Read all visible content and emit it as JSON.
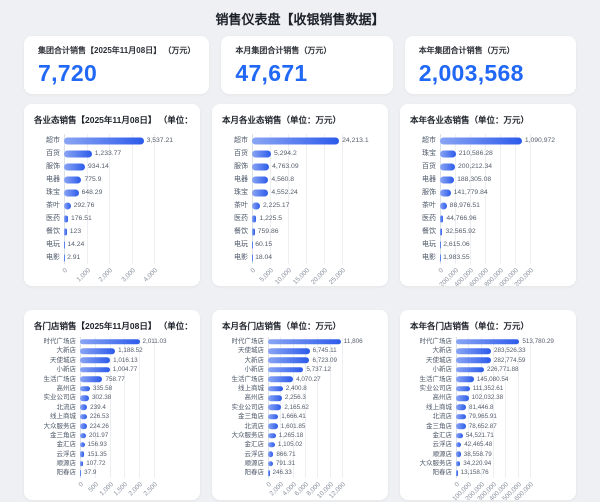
{
  "page": {
    "title": "销售仪表盘【收银销售数据】"
  },
  "colors": {
    "background": "#eef0f3",
    "card": "#ffffff",
    "kpi_value": "#2068f5",
    "bar_gradient_start": "#8aa5f4",
    "bar_gradient_end": "#2c5bea",
    "label_text": "#4e5969",
    "tick_text": "#8a919f"
  },
  "kpis": [
    {
      "title": "集团合计销售【2025年11月08日】 （万元）",
      "value": "7,720"
    },
    {
      "title": "本月集团合计销售（万元）",
      "value": "47,671"
    },
    {
      "title": "本年集团合计销售（万元）",
      "value": "2,003,568"
    }
  ],
  "chart_data": [
    {
      "type": "bar",
      "orientation": "horizontal",
      "title": "各业态销售【2025年11月08日】 （单位：万元）",
      "unit": "万元",
      "legend": null,
      "grid": true,
      "categories": [
        "超市",
        "百货",
        "服饰",
        "电器",
        "珠宝",
        "茶叶",
        "医药",
        "餐饮",
        "电玩",
        "电影"
      ],
      "values": [
        3537.21,
        1233.77,
        934.14,
        775.9,
        648.29,
        292.76,
        176.51,
        123,
        14.24,
        2.91
      ],
      "value_labels": [
        "3,537.21",
        "1,233.77",
        "934.14",
        "775.9",
        "648.29",
        "292.76",
        "176.51",
        "123",
        "14.24",
        "2.91"
      ],
      "xmax": 4000,
      "ticks": [
        0,
        1000,
        2000,
        3000,
        4000
      ],
      "tick_labels": [
        "0",
        "1,000",
        "2,000",
        "3,000",
        "4,000"
      ]
    },
    {
      "type": "bar",
      "orientation": "horizontal",
      "title": "本月各业态销售（单位：万元）",
      "unit": "万元",
      "legend": null,
      "grid": true,
      "categories": [
        "超市",
        "百货",
        "服饰",
        "电器",
        "珠宝",
        "茶叶",
        "医药",
        "餐饮",
        "电玩",
        "电影"
      ],
      "values": [
        24213.1,
        5294.2,
        4763.09,
        4560.8,
        4552.24,
        2225.17,
        1225.5,
        759.86,
        60.15,
        18.04
      ],
      "value_labels": [
        "24,213.1",
        "5,294.2",
        "4,763.09",
        "4,560.8",
        "4,552.24",
        "2,225.17",
        "1,225.5",
        "759.86",
        "60.15",
        "18.04"
      ],
      "xmax": 25000,
      "ticks": [
        0,
        5000,
        10000,
        15000,
        20000,
        25000
      ],
      "tick_labels": [
        "0",
        "5,000",
        "10,000",
        "15,000",
        "20,000",
        "25,000"
      ]
    },
    {
      "type": "bar",
      "orientation": "horizontal",
      "title": "本年各业态销售（单位：万元）",
      "unit": "万元",
      "legend": null,
      "grid": true,
      "categories": [
        "超市",
        "珠宝",
        "百货",
        "电器",
        "服饰",
        "茶叶",
        "医药",
        "餐饮",
        "电玩",
        "电影"
      ],
      "values": [
        1090972,
        210586.28,
        200212.34,
        188305.08,
        141779.84,
        88976.51,
        44766.96,
        32565.92,
        2615.06,
        1983.55
      ],
      "value_labels": [
        "1,090,972",
        "210,586.28",
        "200,212.34",
        "188,305.08",
        "141,779.84",
        "88,976.51",
        "44,766.96",
        "32,565.92",
        "2,615.06",
        "1,983.55"
      ],
      "xmax": 1200000,
      "ticks": [
        0,
        200000,
        400000,
        600000,
        800000,
        1000000,
        1200000
      ],
      "tick_labels": [
        "0",
        "200,000",
        "400,000",
        "600,000",
        "800,000",
        "1,000,000",
        "1,200,000"
      ]
    },
    {
      "type": "bar",
      "orientation": "horizontal",
      "title": "各门店销售【2025年11月08日】 （单位：万元）",
      "unit": "万元",
      "legend": null,
      "grid": true,
      "categories": [
        "时代广场店",
        "大新店",
        "天使城店",
        "小新店",
        "生活广场店",
        "高州店",
        "实业公司店",
        "北流店",
        "线上商城",
        "大众服务店",
        "金三角店",
        "金汇店",
        "云浮店",
        "顺源店",
        "阳春店"
      ],
      "values": [
        2011.03,
        1188.52,
        1016.13,
        1004.77,
        758.77,
        335.58,
        302.38,
        239.4,
        226.53,
        224.26,
        201.97,
        156.93,
        151.35,
        107.72,
        37.9
      ],
      "value_labels": [
        "2,011.03",
        "1,188.52",
        "1,016.13",
        "1,004.77",
        "758.77",
        "335.58",
        "302.38",
        "239.4",
        "226.53",
        "224.26",
        "201.97",
        "156.93",
        "151.35",
        "107.72",
        "37.9"
      ],
      "xmax": 2500,
      "ticks": [
        0,
        500,
        1000,
        1500,
        2000,
        2500
      ],
      "tick_labels": [
        "0",
        "500",
        "1,000",
        "1,500",
        "2,000",
        "2,500"
      ]
    },
    {
      "type": "bar",
      "orientation": "horizontal",
      "title": "本月各门店销售（单位：万元）",
      "unit": "万元",
      "legend": null,
      "grid": true,
      "categories": [
        "时代广场店",
        "天使城店",
        "大新店",
        "小新店",
        "生活广场店",
        "线上商城",
        "高州店",
        "实业公司店",
        "金三角店",
        "北流店",
        "大众服务店",
        "金汇店",
        "云浮店",
        "顺源店",
        "阳春店"
      ],
      "values": [
        11806,
        6745.11,
        6723.09,
        5737.12,
        4070.27,
        2400.8,
        2256.3,
        2165.62,
        1666.41,
        1601.85,
        1265.18,
        1105.02,
        866.71,
        791.31,
        246.33
      ],
      "value_labels": [
        "11,806",
        "6,745.11",
        "6,723.09",
        "5,737.12",
        "4,070.27",
        "2,400.8",
        "2,256.3",
        "2,165.62",
        "1,666.41",
        "1,601.85",
        "1,265.18",
        "1,105.02",
        "866.71",
        "791.31",
        "246.33"
      ],
      "xmax": 12000,
      "ticks": [
        0,
        2000,
        4000,
        6000,
        8000,
        10000,
        12000
      ],
      "tick_labels": [
        "0",
        "2,000",
        "4,000",
        "6,000",
        "8,000",
        "10,000",
        "12,000"
      ]
    },
    {
      "type": "bar",
      "orientation": "horizontal",
      "title": "本年各门店销售（单位：万元）",
      "unit": "万元",
      "legend": null,
      "grid": true,
      "categories": [
        "时代广场店",
        "大新店",
        "天使城店",
        "小新店",
        "生活广场店",
        "实业公司店",
        "高州店",
        "线上商城",
        "北流店",
        "金三角店",
        "金汇店",
        "云浮店",
        "顺源店",
        "大众服务店",
        "阳春店"
      ],
      "values": [
        513780.29,
        283526.33,
        282774.59,
        226771.88,
        145080.54,
        111352.61,
        102032.38,
        81446.8,
        79965.91,
        78652.87,
        54521.71,
        42465.48,
        38558.79,
        34220.94,
        13158.76
      ],
      "value_labels": [
        "513,780.29",
        "283,526.33",
        "282,774.59",
        "226,771.88",
        "145,080.54",
        "111,352.61",
        "102,032.38",
        "81,446.8",
        "79,965.91",
        "78,652.87",
        "54,521.71",
        "42,465.48",
        "38,558.79",
        "34,220.94",
        "13,158.76"
      ],
      "xmax": 600000,
      "ticks": [
        0,
        100000,
        200000,
        300000,
        400000,
        500000,
        600000
      ],
      "tick_labels": [
        "0",
        "100,000",
        "200,000",
        "300,000",
        "400,000",
        "500,000",
        "600,000"
      ]
    }
  ]
}
